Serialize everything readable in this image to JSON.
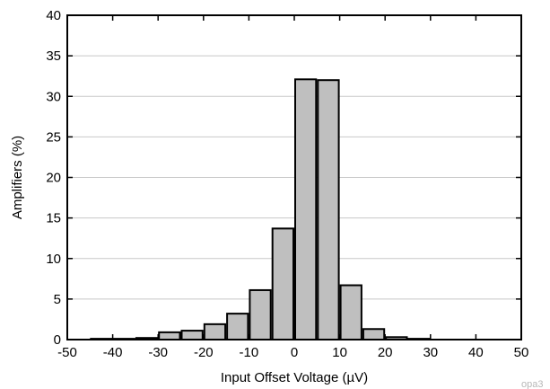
{
  "chart_data": {
    "type": "bar",
    "title": "",
    "xlabel": "Input Offset Voltage (µV)",
    "ylabel": "Amplifiers (%)",
    "xlim": [
      -50,
      50
    ],
    "ylim": [
      0,
      40
    ],
    "x_ticks": [
      -50,
      -40,
      -30,
      -20,
      -10,
      0,
      10,
      20,
      30,
      40,
      50
    ],
    "y_ticks": [
      0,
      5,
      10,
      15,
      20,
      25,
      30,
      35,
      40
    ],
    "bin_width": 5,
    "grid": true,
    "bar_color": "#bfbfbf",
    "bins": [
      {
        "start": -45,
        "end": -40,
        "value": 0.1
      },
      {
        "start": -40,
        "end": -35,
        "value": 0.1
      },
      {
        "start": -35,
        "end": -30,
        "value": 0.2
      },
      {
        "start": -30,
        "end": -25,
        "value": 0.9
      },
      {
        "start": -25,
        "end": -20,
        "value": 1.1
      },
      {
        "start": -20,
        "end": -15,
        "value": 1.9
      },
      {
        "start": -15,
        "end": -10,
        "value": 3.2
      },
      {
        "start": -10,
        "end": -5,
        "value": 6.1
      },
      {
        "start": -5,
        "end": 0,
        "value": 13.7
      },
      {
        "start": 0,
        "end": 5,
        "value": 32.1
      },
      {
        "start": 5,
        "end": 10,
        "value": 32.0
      },
      {
        "start": 10,
        "end": 15,
        "value": 6.7
      },
      {
        "start": 15,
        "end": 20,
        "value": 1.3
      },
      {
        "start": 20,
        "end": 25,
        "value": 0.3
      },
      {
        "start": 25,
        "end": 30,
        "value": 0.1
      }
    ]
  },
  "watermark": "opa3"
}
